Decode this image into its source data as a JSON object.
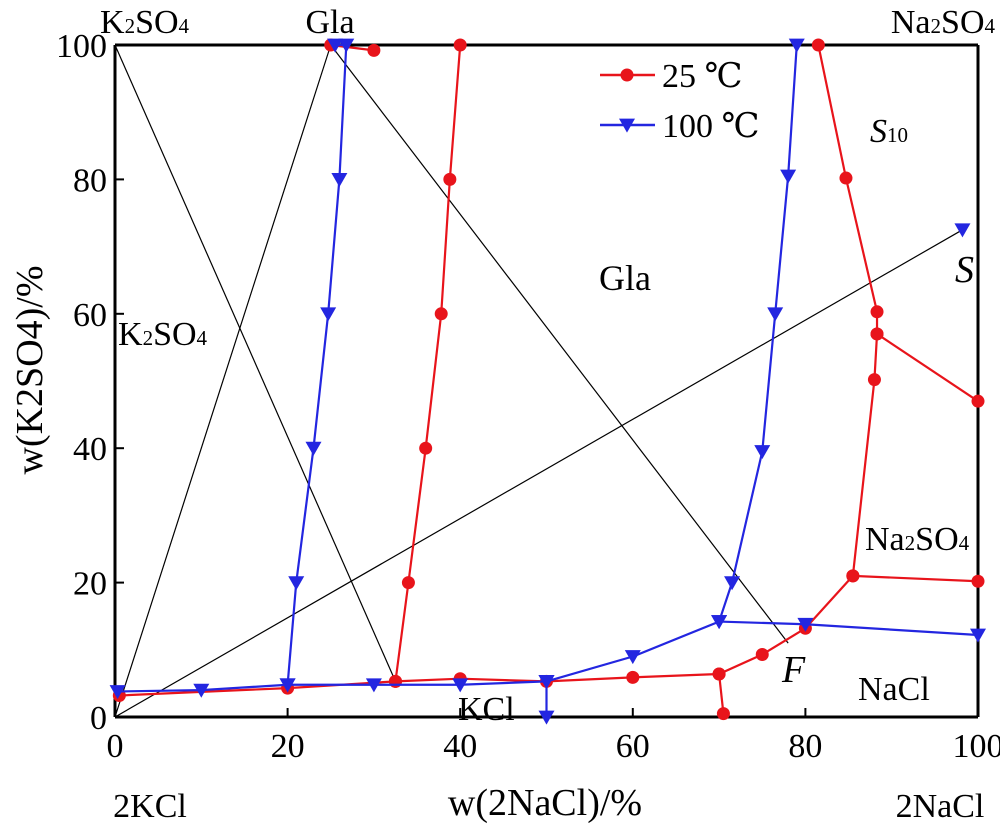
{
  "chart_data": {
    "type": "line",
    "xlabel": "w(2NaCl)/%",
    "ylabel": "w(K2SO4)/%",
    "xlim": [
      0,
      100
    ],
    "ylim": [
      0,
      100
    ],
    "xticks": [
      "0",
      "20",
      "40",
      "60",
      "80",
      "100"
    ],
    "yticks": [
      "0",
      "20",
      "40",
      "60",
      "80",
      "100"
    ],
    "legend_position": "top-center",
    "series": [
      {
        "name": "25 ℃",
        "color": "#e8141b",
        "marker": "circle",
        "segments": [
          [
            [
              0.5,
              3.2
            ],
            [
              20,
              4.3
            ],
            [
              32.5,
              5.3
            ],
            [
              40,
              5.7
            ],
            [
              50,
              5.3
            ],
            [
              60,
              5.9
            ],
            [
              70,
              6.4
            ],
            [
              75,
              9.3
            ],
            [
              80,
              13.2
            ],
            [
              85.5,
              21
            ],
            [
              100,
              20.2
            ]
          ],
          [
            [
              25,
              100
            ],
            [
              30,
              99.2
            ]
          ],
          [
            [
              40,
              100
            ],
            [
              38.8,
              80
            ],
            [
              37.8,
              60
            ],
            [
              36,
              40
            ],
            [
              34,
              20
            ],
            [
              32.5,
              5.3
            ]
          ],
          [
            [
              81.5,
              100
            ],
            [
              84.7,
              80.2
            ],
            [
              88.3,
              60.3
            ],
            [
              88.3,
              57
            ],
            [
              88,
              50.2
            ],
            [
              85.5,
              21
            ]
          ],
          [
            [
              88.3,
              57
            ],
            [
              100,
              47
            ]
          ],
          [
            [
              70,
              6.4
            ],
            [
              70.5,
              0.5
            ]
          ]
        ]
      },
      {
        "name": "100 ℃",
        "color": "#2326e0",
        "marker": "triangle-down",
        "segments": [
          [
            [
              0.3,
              3.8
            ],
            [
              10,
              4
            ],
            [
              20,
              4.8
            ],
            [
              30,
              4.8
            ],
            [
              40,
              4.8
            ],
            [
              50,
              5.3
            ]
          ],
          [
            [
              25.5,
              100
            ],
            [
              26.8,
              100
            ],
            [
              26,
              80
            ],
            [
              24.7,
              60
            ],
            [
              23,
              40
            ],
            [
              21,
              20
            ],
            [
              20,
              4.8
            ]
          ],
          [
            [
              50,
              5.3
            ],
            [
              50,
              0
            ]
          ],
          [
            [
              50,
              5.3
            ],
            [
              60,
              9
            ],
            [
              70,
              14.2
            ],
            [
              80,
              13.8
            ],
            [
              100,
              12.2
            ]
          ],
          [
            [
              79,
              100
            ],
            [
              78,
              80.5
            ],
            [
              76.5,
              60
            ],
            [
              75,
              39.5
            ],
            [
              71.5,
              20
            ],
            [
              70,
              14.2
            ]
          ],
          [
            [
              98.2,
              72.5
            ]
          ]
        ]
      }
    ],
    "reference_lines": [
      [
        [
          0,
          100
        ],
        [
          32.5,
          5.3
        ]
      ],
      [
        [
          0,
          0
        ],
        [
          25,
          100
        ]
      ],
      [
        [
          25,
          100
        ],
        [
          78,
          11
        ]
      ],
      [
        [
          0,
          0
        ],
        [
          98.2,
          72.5
        ]
      ]
    ],
    "annotations": {
      "corner_tl": "K2SO4",
      "corner_top_gla": "Gla",
      "corner_tr": "Na2SO4",
      "corner_bl": "2KCl",
      "corner_br": "2NaCl",
      "region_k2so4": "K2SO4",
      "region_gla": "Gla",
      "region_s10": "S10",
      "region_na2so4": "Na2SO4",
      "region_nacl": "NaCl",
      "region_kcl": "KCl",
      "point_s": "S",
      "point_f": "F"
    }
  }
}
